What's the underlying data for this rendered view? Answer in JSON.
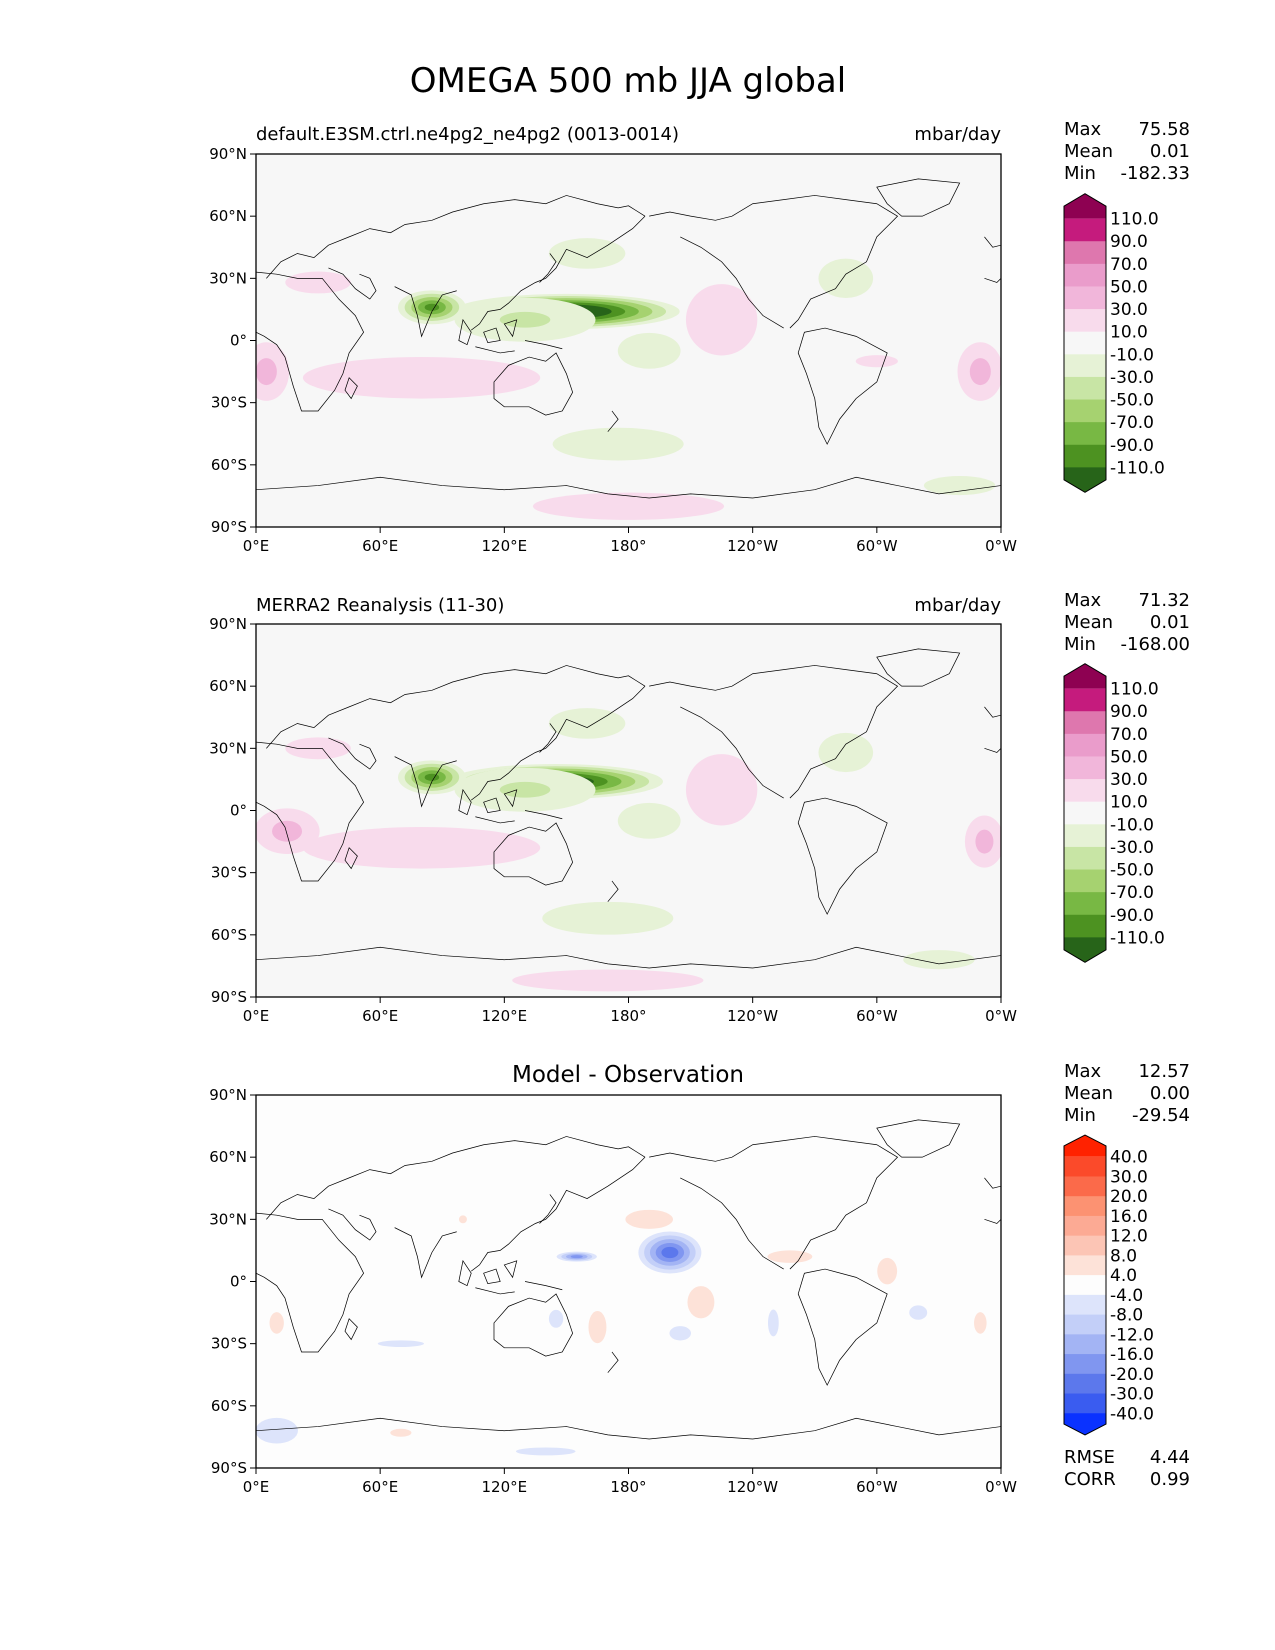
{
  "figure": {
    "title": "OMEGA 500 mb JJA global"
  },
  "colors": {
    "land_line": "#000000",
    "background": "#ffffff",
    "panel_bg": "#f7f7f7"
  },
  "chart_data": [
    {
      "type": "heatmap",
      "id": "test",
      "left_title": "default.E3SM.ctrl.ne4pg2_ne4pg2 (0013-0014)",
      "right_title": "mbar/day",
      "center_title": "",
      "xlim": [
        0,
        360
      ],
      "ylim": [
        -90,
        90
      ],
      "x_tick_labels": [
        "0°E",
        "60°E",
        "120°E",
        "180°",
        "120°W",
        "60°W",
        "0°W"
      ],
      "y_tick_labels": [
        "90°S",
        "60°S",
        "30°S",
        "0°",
        "30°N",
        "60°N",
        "90°N"
      ],
      "stats": {
        "labels": [
          "Max",
          "Mean",
          "Min"
        ],
        "values": [
          "75.58",
          "0.01",
          "-182.33"
        ]
      },
      "colorbar": {
        "labels": [
          "110.0",
          "90.0",
          "70.0",
          "50.0",
          "30.0",
          "10.0",
          "-10.0",
          "-30.0",
          "-50.0",
          "-70.0",
          "-90.0",
          "-110.0"
        ],
        "colors": [
          "#8e0152",
          "#c51b7d",
          "#de77ae",
          "#ea9ccb",
          "#f1b6da",
          "#f8dbec",
          "#f7f7f7",
          "#e6f2d6",
          "#c8e5a5",
          "#a6d270",
          "#78b844",
          "#4d9221",
          "#276419"
        ]
      },
      "features": [
        {
          "lon": 150,
          "lat": 14,
          "rx": 58,
          "ry": 9,
          "value": -150
        },
        {
          "lon": 85,
          "lat": 16,
          "rx": 18,
          "ry": 9,
          "value": -95
        },
        {
          "lon": 130,
          "lat": 10,
          "rx": 45,
          "ry": 14,
          "value": -35
        },
        {
          "lon": 160,
          "lat": 42,
          "rx": 35,
          "ry": 14,
          "value": -18
        },
        {
          "lon": 285,
          "lat": 30,
          "rx": 25,
          "ry": 18,
          "value": -18
        },
        {
          "lon": 190,
          "lat": -5,
          "rx": 35,
          "ry": 20,
          "value": -15
        },
        {
          "lon": 175,
          "lat": -50,
          "rx": 60,
          "ry": 15,
          "value": -18
        },
        {
          "lon": 340,
          "lat": -70,
          "rx": 30,
          "ry": 8,
          "value": -20
        },
        {
          "lon": 95,
          "lat": -20,
          "rx": 30,
          "ry": 8,
          "value": 70
        },
        {
          "lon": 80,
          "lat": -18,
          "rx": 80,
          "ry": 14,
          "value": 30
        },
        {
          "lon": 5,
          "lat": -15,
          "rx": 14,
          "ry": 18,
          "value": 40
        },
        {
          "lon": 350,
          "lat": -15,
          "rx": 14,
          "ry": 18,
          "value": 40
        },
        {
          "lon": 225,
          "lat": 10,
          "rx": 30,
          "ry": 30,
          "value": 20
        },
        {
          "lon": 180,
          "lat": -80,
          "rx": 70,
          "ry": 10,
          "value": 25
        },
        {
          "lon": 30,
          "lat": 28,
          "rx": 30,
          "ry": 10,
          "value": 18
        },
        {
          "lon": 300,
          "lat": -10,
          "rx": 35,
          "ry": 10,
          "value": 12
        }
      ]
    },
    {
      "type": "heatmap",
      "id": "reference",
      "left_title": "MERRA2 Reanalysis (11-30)",
      "right_title": "mbar/day",
      "center_title": "",
      "xlim": [
        0,
        360
      ],
      "ylim": [
        -90,
        90
      ],
      "x_tick_labels": [
        "0°E",
        "60°E",
        "120°E",
        "180°",
        "120°W",
        "60°W",
        "0°W"
      ],
      "y_tick_labels": [
        "90°S",
        "60°S",
        "30°S",
        "0°",
        "30°N",
        "60°N",
        "90°N"
      ],
      "stats": {
        "labels": [
          "Max",
          "Mean",
          "Min"
        ],
        "values": [
          "71.32",
          "0.01",
          "-168.00"
        ]
      },
      "colorbar": {
        "labels": [
          "110.0",
          "90.0",
          "70.0",
          "50.0",
          "30.0",
          "10.0",
          "-10.0",
          "-30.0",
          "-50.0",
          "-70.0",
          "-90.0",
          "-110.0"
        ],
        "colors": [
          "#8e0152",
          "#c51b7d",
          "#de77ae",
          "#ea9ccb",
          "#f1b6da",
          "#f8dbec",
          "#f7f7f7",
          "#e6f2d6",
          "#c8e5a5",
          "#a6d270",
          "#78b844",
          "#4d9221",
          "#276419"
        ]
      },
      "features": [
        {
          "lon": 145,
          "lat": 14,
          "rx": 55,
          "ry": 9,
          "value": -140
        },
        {
          "lon": 85,
          "lat": 16,
          "rx": 18,
          "ry": 9,
          "value": -95
        },
        {
          "lon": 130,
          "lat": 10,
          "rx": 45,
          "ry": 14,
          "value": -35
        },
        {
          "lon": 160,
          "lat": 42,
          "rx": 35,
          "ry": 14,
          "value": -18
        },
        {
          "lon": 285,
          "lat": 28,
          "rx": 25,
          "ry": 18,
          "value": -18
        },
        {
          "lon": 190,
          "lat": -5,
          "rx": 35,
          "ry": 20,
          "value": -15
        },
        {
          "lon": 170,
          "lat": -52,
          "rx": 60,
          "ry": 15,
          "value": -18
        },
        {
          "lon": 330,
          "lat": -72,
          "rx": 30,
          "ry": 8,
          "value": -20
        },
        {
          "lon": 90,
          "lat": -20,
          "rx": 30,
          "ry": 8,
          "value": 65
        },
        {
          "lon": 80,
          "lat": -18,
          "rx": 80,
          "ry": 14,
          "value": 30
        },
        {
          "lon": 15,
          "lat": -10,
          "rx": 20,
          "ry": 14,
          "value": 40
        },
        {
          "lon": 352,
          "lat": -15,
          "rx": 12,
          "ry": 16,
          "value": 40
        },
        {
          "lon": 225,
          "lat": 10,
          "rx": 30,
          "ry": 30,
          "value": 20
        },
        {
          "lon": 170,
          "lat": -82,
          "rx": 70,
          "ry": 8,
          "value": 25
        },
        {
          "lon": 30,
          "lat": 30,
          "rx": 30,
          "ry": 10,
          "value": 18
        }
      ]
    },
    {
      "type": "heatmap",
      "id": "difference",
      "left_title": "",
      "right_title": "",
      "center_title": "Model - Observation",
      "xlim": [
        0,
        360
      ],
      "ylim": [
        -90,
        90
      ],
      "x_tick_labels": [
        "0°E",
        "60°E",
        "120°E",
        "180°",
        "120°W",
        "60°W",
        "0°W"
      ],
      "y_tick_labels": [
        "90°S",
        "60°S",
        "30°S",
        "0°",
        "30°N",
        "60°N",
        "90°N"
      ],
      "stats": {
        "labels": [
          "Max",
          "Mean",
          "Min"
        ],
        "values": [
          "12.57",
          "0.00",
          "-29.54"
        ]
      },
      "metrics": {
        "labels": [
          "RMSE",
          "CORR"
        ],
        "values": [
          "4.44",
          "0.99"
        ]
      },
      "colorbar": {
        "labels": [
          "40.0",
          "30.0",
          "20.0",
          "16.0",
          "12.0",
          "8.0",
          "4.0",
          "-4.0",
          "-8.0",
          "-12.0",
          "-16.0",
          "-20.0",
          "-30.0",
          "-40.0"
        ],
        "colors": [
          "#ff2200",
          "#fb4a2a",
          "#fb6a4a",
          "#fc9272",
          "#fcaa94",
          "#fcc5b5",
          "#fde2d8",
          "#fdfdfd",
          "#dde4fb",
          "#c3cff8",
          "#a3b4f4",
          "#8096f0",
          "#5c78ec",
          "#3a5cf0",
          "#0a32ff"
        ]
      },
      "features": [
        {
          "lon": 200,
          "lat": 14,
          "rx": 18,
          "ry": 12,
          "value": -22
        },
        {
          "lon": 155,
          "lat": 12,
          "rx": 12,
          "ry": 3,
          "value": -18
        },
        {
          "lon": 190,
          "lat": 30,
          "rx": 20,
          "ry": 8,
          "value": 8
        },
        {
          "lon": 258,
          "lat": 12,
          "rx": 25,
          "ry": 7,
          "value": 6
        },
        {
          "lon": 165,
          "lat": -22,
          "rx": 10,
          "ry": 18,
          "value": 6
        },
        {
          "lon": 215,
          "lat": -10,
          "rx": 15,
          "ry": 18,
          "value": 6
        },
        {
          "lon": 10,
          "lat": -20,
          "rx": 8,
          "ry": 12,
          "value": 6
        },
        {
          "lon": 350,
          "lat": -20,
          "rx": 7,
          "ry": 12,
          "value": 6
        },
        {
          "lon": 70,
          "lat": -73,
          "rx": 16,
          "ry": 6,
          "value": 5
        },
        {
          "lon": 330,
          "lat": -85,
          "rx": 40,
          "ry": 5,
          "value": 4
        },
        {
          "lon": 305,
          "lat": 5,
          "rx": 15,
          "ry": 20,
          "value": 5
        },
        {
          "lon": 10,
          "lat": -72,
          "rx": 20,
          "ry": 12,
          "value": -7
        },
        {
          "lon": 70,
          "lat": -30,
          "rx": 35,
          "ry": 5,
          "value": -5
        },
        {
          "lon": 140,
          "lat": -82,
          "rx": 45,
          "ry": 6,
          "value": -5
        },
        {
          "lon": 250,
          "lat": -20,
          "rx": 6,
          "ry": 15,
          "value": -6
        },
        {
          "lon": 205,
          "lat": -25,
          "rx": 12,
          "ry": 8,
          "value": -6
        },
        {
          "lon": 320,
          "lat": -15,
          "rx": 10,
          "ry": 8,
          "value": -6
        },
        {
          "lon": 145,
          "lat": -18,
          "rx": 8,
          "ry": 10,
          "value": -6
        },
        {
          "lon": 100,
          "lat": 30,
          "rx": 6,
          "ry": 6,
          "value": 5
        }
      ]
    }
  ]
}
